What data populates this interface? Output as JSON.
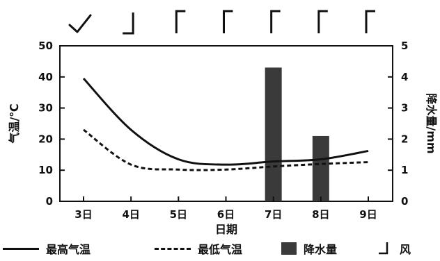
{
  "chart_data": {
    "type": "line+bar",
    "categories": [
      "3日",
      "4日",
      "5日",
      "6日",
      "7日",
      "8日",
      "9日"
    ],
    "xlabel": "日期",
    "ylabel_left": "气温/℃",
    "ylabel_right": "降水量/mm",
    "ylim_left": [
      0,
      50
    ],
    "ylim_right": [
      0,
      5
    ],
    "yticks_left": [
      "0",
      "10",
      "20",
      "30",
      "40",
      "50"
    ],
    "yticks_right": [
      "0",
      "1",
      "2",
      "3",
      "4",
      "5"
    ],
    "series": [
      {
        "name": "最高气温",
        "kind": "line",
        "style": "solid",
        "axis": "left",
        "values": [
          39.5,
          23,
          13.5,
          11.8,
          12.8,
          13.5,
          16.2
        ]
      },
      {
        "name": "最低气温",
        "kind": "line",
        "style": "dashed",
        "axis": "left",
        "values": [
          23,
          11.8,
          10.2,
          10.2,
          11.2,
          12,
          12.6
        ]
      },
      {
        "name": "降水量",
        "kind": "bar",
        "axis": "right",
        "values": [
          0,
          0,
          0,
          0,
          4.3,
          2.1,
          0
        ]
      }
    ],
    "wind_symbols": [
      "calm-checkmark-icon",
      "wind-barb-icon",
      "wind-barb-icon",
      "wind-barb-icon",
      "wind-barb-icon",
      "wind-barb-icon",
      "wind-barb-icon"
    ],
    "colors": {
      "line": "#111111",
      "bar": "#3a3a3a"
    }
  },
  "legend": {
    "max_temp": "最高气温",
    "min_temp": "最低气温",
    "precip": "降水量",
    "wind": "风"
  }
}
